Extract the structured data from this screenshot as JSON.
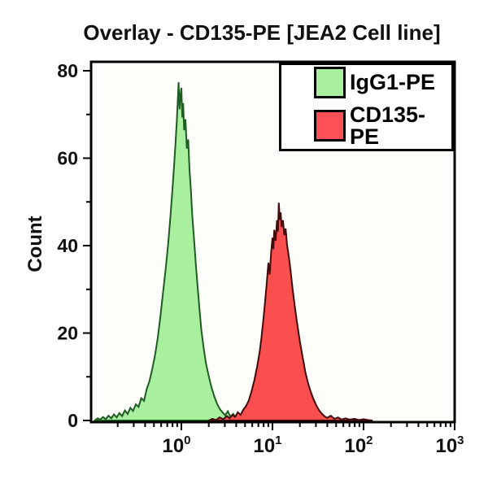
{
  "header": {
    "title": "Overlay - CD135-PE [JEA2 Cell line]"
  },
  "chart_data": {
    "type": "area",
    "subtype": "flow-cytometry-histogram-overlay",
    "title": "Overlay - CD135-PE [JEA2 Cell line]",
    "xlabel": "",
    "ylabel": "Count",
    "x_scale": "log10",
    "xlim_log10": [
      -0.99,
      3
    ],
    "ylim": [
      0,
      80
    ],
    "y_major_ticks": [
      0,
      20,
      40,
      60,
      80
    ],
    "y_minor_ticks": [
      10,
      30,
      50,
      70
    ],
    "x_major_ticks": [
      {
        "base": 10,
        "exp": "0"
      },
      {
        "base": 10,
        "exp": "1"
      },
      {
        "base": 10,
        "exp": "2"
      },
      {
        "base": 10,
        "exp": "3"
      }
    ],
    "x_minor_ticks": "log-decade-2-9",
    "grid": false,
    "plot_background": "#fdfdfa",
    "axis_color": "#000000",
    "legend": {
      "position": "top-right",
      "background": "#ffffff",
      "border_color": "#000000",
      "entries": [
        {
          "label": "IgG1-PE",
          "fill": "#a8ef9f"
        },
        {
          "label": "CD135-PE",
          "fill": "#fb5156"
        }
      ]
    },
    "peaks": [
      {
        "name": "IgG1-PE",
        "mode_x": 0.93,
        "mode_count": 77
      },
      {
        "name": "CD135-PE",
        "mode_x": 11.7,
        "mode_count": 50
      }
    ],
    "series": [
      {
        "name": "IgG1-PE",
        "fill": "#a8ef9f",
        "stroke": "#1e5c21",
        "points_log10x_vs_count": [
          [
            -0.95,
            0
          ],
          [
            -0.92,
            0.5
          ],
          [
            -0.89,
            0.2
          ],
          [
            -0.86,
            0.8
          ],
          [
            -0.83,
            0.3
          ],
          [
            -0.8,
            1.1
          ],
          [
            -0.77,
            0.5
          ],
          [
            -0.74,
            1.4
          ],
          [
            -0.71,
            0.7
          ],
          [
            -0.68,
            1.7
          ],
          [
            -0.65,
            1.0
          ],
          [
            -0.62,
            2.3
          ],
          [
            -0.59,
            1.5
          ],
          [
            -0.56,
            2.9
          ],
          [
            -0.53,
            2.2
          ],
          [
            -0.5,
            3.7
          ],
          [
            -0.47,
            3.1
          ],
          [
            -0.44,
            5.1
          ],
          [
            -0.41,
            4.5
          ],
          [
            -0.38,
            7.2
          ],
          [
            -0.35,
            9.0
          ],
          [
            -0.32,
            11.8
          ],
          [
            -0.29,
            14.8
          ],
          [
            -0.26,
            18.8
          ],
          [
            -0.23,
            23.8
          ],
          [
            -0.2,
            29.5
          ],
          [
            -0.17,
            35.2
          ],
          [
            -0.145,
            40.5
          ],
          [
            -0.12,
            46.8
          ],
          [
            -0.1,
            52.3
          ],
          [
            -0.08,
            58.2
          ],
          [
            -0.065,
            63.1
          ],
          [
            -0.05,
            68.6
          ],
          [
            -0.04,
            72.8
          ],
          [
            -0.03,
            77.4
          ],
          [
            -0.02,
            71.2
          ],
          [
            -0.01,
            74.5
          ],
          [
            0,
            76.1
          ],
          [
            0.01,
            69.3
          ],
          [
            0.02,
            72.6
          ],
          [
            0.03,
            66.4
          ],
          [
            0.045,
            68.9
          ],
          [
            0.06,
            62.2
          ],
          [
            0.075,
            64.3
          ],
          [
            0.09,
            57.1
          ],
          [
            0.105,
            52.4
          ],
          [
            0.12,
            46.9
          ],
          [
            0.14,
            41.2
          ],
          [
            0.16,
            35.4
          ],
          [
            0.18,
            30.1
          ],
          [
            0.2,
            25.2
          ],
          [
            0.22,
            20.6
          ],
          [
            0.245,
            16.6
          ],
          [
            0.27,
            13.1
          ],
          [
            0.3,
            10.2
          ],
          [
            0.33,
            7.6
          ],
          [
            0.36,
            5.6
          ],
          [
            0.39,
            3.9
          ],
          [
            0.42,
            2.7
          ],
          [
            0.45,
            1.9
          ],
          [
            0.48,
            1.2
          ],
          [
            0.51,
            2.1
          ],
          [
            0.54,
            0.8
          ],
          [
            0.57,
            1.5
          ],
          [
            0.6,
            0.5
          ],
          [
            0.64,
            1.1
          ],
          [
            0.68,
            0.4
          ],
          [
            0.72,
            0.9
          ],
          [
            0.76,
            0.2
          ],
          [
            0.8,
            0.7
          ],
          [
            0.85,
            0.2
          ],
          [
            0.9,
            0.5
          ],
          [
            0.95,
            0.1
          ],
          [
            1.0,
            0.4
          ],
          [
            1.05,
            0
          ]
        ]
      },
      {
        "name": "CD135-PE",
        "fill": "#f94f4f",
        "stroke": "#420a0a",
        "points_log10x_vs_count": [
          [
            0.3,
            0
          ],
          [
            0.34,
            0.4
          ],
          [
            0.38,
            0.1
          ],
          [
            0.42,
            0.7
          ],
          [
            0.46,
            0.3
          ],
          [
            0.5,
            1.0
          ],
          [
            0.53,
            0.5
          ],
          [
            0.56,
            1.3
          ],
          [
            0.59,
            0.8
          ],
          [
            0.62,
            1.9
          ],
          [
            0.65,
            1.3
          ],
          [
            0.68,
            2.5
          ],
          [
            0.71,
            3.3
          ],
          [
            0.74,
            4.6
          ],
          [
            0.77,
            6.6
          ],
          [
            0.8,
            9.1
          ],
          [
            0.83,
            12.2
          ],
          [
            0.86,
            15.7
          ],
          [
            0.88,
            19.2
          ],
          [
            0.9,
            23.1
          ],
          [
            0.92,
            27.3
          ],
          [
            0.94,
            32.2
          ],
          [
            0.955,
            36.1
          ],
          [
            0.97,
            33.4
          ],
          [
            0.985,
            38.3
          ],
          [
            1.0,
            41.8
          ],
          [
            1.01,
            39.2
          ],
          [
            1.02,
            43.6
          ],
          [
            1.035,
            41.1
          ],
          [
            1.05,
            45.8
          ],
          [
            1.06,
            43.2
          ],
          [
            1.07,
            49.8
          ],
          [
            1.08,
            45.9
          ],
          [
            1.09,
            47.6
          ],
          [
            1.1,
            44.3
          ],
          [
            1.115,
            45.8
          ],
          [
            1.13,
            42.4
          ],
          [
            1.145,
            43.9
          ],
          [
            1.16,
            40.2
          ],
          [
            1.18,
            37.4
          ],
          [
            1.2,
            34.1
          ],
          [
            1.22,
            30.3
          ],
          [
            1.245,
            26.2
          ],
          [
            1.27,
            22.4
          ],
          [
            1.3,
            18.2
          ],
          [
            1.33,
            14.6
          ],
          [
            1.36,
            11.2
          ],
          [
            1.39,
            8.6
          ],
          [
            1.42,
            6.6
          ],
          [
            1.45,
            4.9
          ],
          [
            1.48,
            3.5
          ],
          [
            1.51,
            2.4
          ],
          [
            1.54,
            1.6
          ],
          [
            1.57,
            1.0
          ],
          [
            1.6,
            0.6
          ],
          [
            1.64,
            1.1
          ],
          [
            1.68,
            0.4
          ],
          [
            1.72,
            0.7
          ],
          [
            1.76,
            0.2
          ],
          [
            1.8,
            0.5
          ],
          [
            1.85,
            0.2
          ],
          [
            1.9,
            0.4
          ],
          [
            1.95,
            0.1
          ],
          [
            2.0,
            0.3
          ],
          [
            2.05,
            0.1
          ],
          [
            2.1,
            0
          ]
        ]
      }
    ]
  }
}
